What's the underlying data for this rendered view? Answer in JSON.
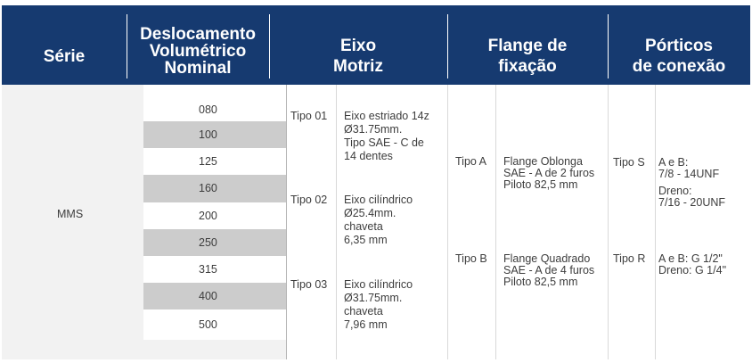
{
  "header": {
    "serie": "Série",
    "deslocamento": [
      "Deslocamento",
      "Volumétrico",
      "Nominal"
    ],
    "eixo": [
      "Eixo",
      "Motriz"
    ],
    "flange": [
      "Flange de",
      "fixação"
    ],
    "porticos": [
      "Pórticos",
      "de conexão"
    ]
  },
  "serie": "MMS",
  "deslocamentos": [
    "080",
    "100",
    "125",
    "160",
    "200",
    "250",
    "315",
    "400",
    "500"
  ],
  "eixo": [
    {
      "tipo": "Tipo 01",
      "lines": [
        "Eixo estriado 14z",
        "Ø31.75mm.",
        "Tipo SAE - C de",
        "14 dentes"
      ]
    },
    {
      "tipo": "Tipo 02",
      "lines": [
        "Eixo cilíndrico",
        "Ø25.4mm.",
        "chaveta",
        "6,35 mm"
      ]
    },
    {
      "tipo": "Tipo 03",
      "lines": [
        "Eixo cilíndrico",
        "Ø31.75mm.",
        "chaveta",
        "7,96 mm"
      ]
    }
  ],
  "flange": [
    {
      "tipo": "Tipo  A",
      "lines": [
        "Flange Oblonga",
        "SAE - A de 2 furos",
        "Piloto 82,5 mm"
      ]
    },
    {
      "tipo": "Tipo B",
      "lines": [
        "Flange Quadrado",
        "SAE - A de 4 furos",
        "Piloto 82,5 mm"
      ]
    }
  ],
  "porticos": [
    {
      "tipo": "Tipo S",
      "lines": [
        "A e B:",
        "7/8 - 14UNF",
        "Dreno:",
        "7/16 - 20UNF"
      ]
    },
    {
      "tipo": "Tipo R",
      "lines": [
        "A e B: G 1/2\"",
        "Dreno: G 1/4\""
      ]
    }
  ]
}
